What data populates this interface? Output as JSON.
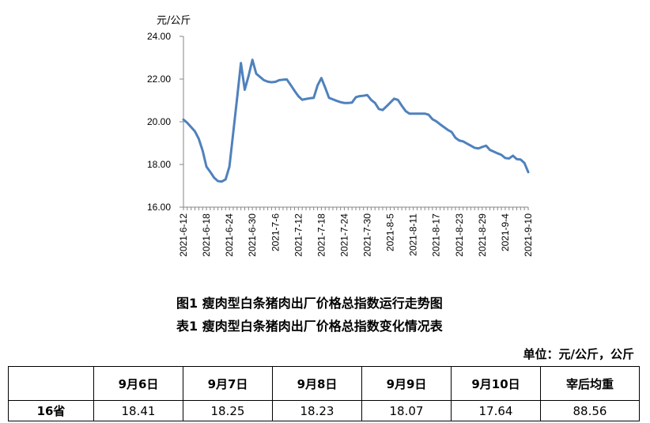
{
  "chart_data": {
    "type": "line",
    "ylabel_unit": "元/公斤",
    "ylim": [
      16,
      24
    ],
    "yticks": [
      "16.00",
      "18.00",
      "20.00",
      "22.00",
      "24.00"
    ],
    "xticks": [
      "2021-6-12",
      "2021-6-18",
      "2021-6-24",
      "2021-6-30",
      "2021-7-6",
      "2021-7-12",
      "2021-7-18",
      "2021-7-24",
      "2021-7-30",
      "2021-8-5",
      "2021-8-11",
      "2021-8-17",
      "2021-8-23",
      "2021-8-29",
      "2021-9-4",
      "2021-9-10"
    ],
    "grid": false,
    "color": "#4F81BD",
    "x": [
      "2021-6-12",
      "2021-6-13",
      "2021-6-14",
      "2021-6-15",
      "2021-6-16",
      "2021-6-17",
      "2021-6-18",
      "2021-6-19",
      "2021-6-20",
      "2021-6-21",
      "2021-6-22",
      "2021-6-23",
      "2021-6-24",
      "2021-6-25",
      "2021-6-26",
      "2021-6-27",
      "2021-6-28",
      "2021-6-29",
      "2021-6-30",
      "2021-7-1",
      "2021-7-2",
      "2021-7-3",
      "2021-7-4",
      "2021-7-5",
      "2021-7-6",
      "2021-7-7",
      "2021-7-8",
      "2021-7-9",
      "2021-7-10",
      "2021-7-11",
      "2021-7-12",
      "2021-7-13",
      "2021-7-14",
      "2021-7-15",
      "2021-7-16",
      "2021-7-17",
      "2021-7-18",
      "2021-7-19",
      "2021-7-20",
      "2021-7-21",
      "2021-7-22",
      "2021-7-23",
      "2021-7-24",
      "2021-7-25",
      "2021-7-26",
      "2021-7-27",
      "2021-7-28",
      "2021-7-29",
      "2021-7-30",
      "2021-7-31",
      "2021-8-1",
      "2021-8-2",
      "2021-8-3",
      "2021-8-4",
      "2021-8-5",
      "2021-8-6",
      "2021-8-7",
      "2021-8-8",
      "2021-8-9",
      "2021-8-10",
      "2021-8-11",
      "2021-8-12",
      "2021-8-13",
      "2021-8-14",
      "2021-8-15",
      "2021-8-16",
      "2021-8-17",
      "2021-8-18",
      "2021-8-19",
      "2021-8-20",
      "2021-8-21",
      "2021-8-22",
      "2021-8-23",
      "2021-8-24",
      "2021-8-25",
      "2021-8-26",
      "2021-8-27",
      "2021-8-28",
      "2021-8-29",
      "2021-8-30",
      "2021-8-31",
      "2021-9-1",
      "2021-9-2",
      "2021-9-3",
      "2021-9-4",
      "2021-9-5",
      "2021-9-6",
      "2021-9-7",
      "2021-9-8",
      "2021-9-9",
      "2021-9-10"
    ],
    "values": [
      20.1,
      19.95,
      19.75,
      19.55,
      19.2,
      18.65,
      17.9,
      17.65,
      17.38,
      17.22,
      17.2,
      17.3,
      17.9,
      19.5,
      21.1,
      22.75,
      21.5,
      22.15,
      22.9,
      22.25,
      22.1,
      21.95,
      21.88,
      21.85,
      21.87,
      21.95,
      21.97,
      21.98,
      21.72,
      21.45,
      21.2,
      21.03,
      21.07,
      21.1,
      21.12,
      21.7,
      22.05,
      21.6,
      21.12,
      21.05,
      20.98,
      20.92,
      20.88,
      20.88,
      20.9,
      21.15,
      21.2,
      21.22,
      21.25,
      21.02,
      20.88,
      20.6,
      20.55,
      20.72,
      20.9,
      21.08,
      21.02,
      20.75,
      20.5,
      20.38,
      20.38,
      20.38,
      20.38,
      20.38,
      20.33,
      20.12,
      20.02,
      19.88,
      19.75,
      19.62,
      19.52,
      19.25,
      19.12,
      19.08,
      18.98,
      18.88,
      18.78,
      18.75,
      18.82,
      18.88,
      18.68,
      18.6,
      18.52,
      18.45,
      18.3,
      18.28,
      18.41,
      18.25,
      18.23,
      18.07,
      17.64
    ]
  },
  "captions": {
    "figure": "图1 瘦肉型白条猪肉出厂价格总指数运行走势图",
    "table": "表1 瘦肉型白条猪肉出厂价格总指数变化情况表"
  },
  "table": {
    "unit": "单位：元/公斤，公斤",
    "headers": [
      "",
      "9月6日",
      "9月7日",
      "9月8日",
      "9月9日",
      "9月10日",
      "宰后均重"
    ],
    "rows": [
      {
        "label": "16省",
        "cells": [
          "18.41",
          "18.25",
          "18.23",
          "18.07",
          "17.64",
          "88.56"
        ]
      }
    ]
  }
}
